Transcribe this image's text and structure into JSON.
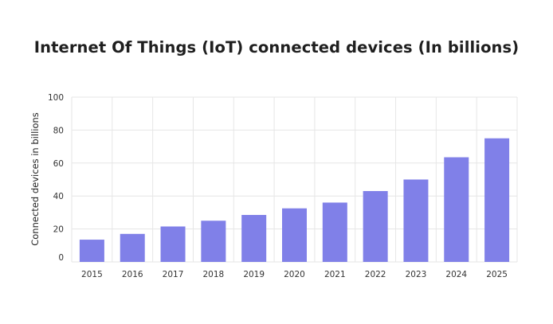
{
  "chart_data": {
    "type": "bar",
    "title": "Internet Of Things (IoT) connected devices (In billions)",
    "xlabel": "",
    "ylabel": "Connected devices in billions",
    "categories": [
      "2015",
      "2016",
      "2017",
      "2018",
      "2019",
      "2020",
      "2021",
      "2022",
      "2023",
      "2024",
      "2025"
    ],
    "values": [
      13.5,
      17,
      21.5,
      25,
      28.5,
      32.5,
      36,
      43,
      50,
      63.5,
      75
    ],
    "ylim": [
      0,
      100
    ],
    "yticks": [
      0,
      20,
      40,
      60,
      80,
      100
    ],
    "grid": true,
    "legend": "none",
    "bar_color": "#8080e8",
    "grid_color": "#e6e6e6"
  }
}
